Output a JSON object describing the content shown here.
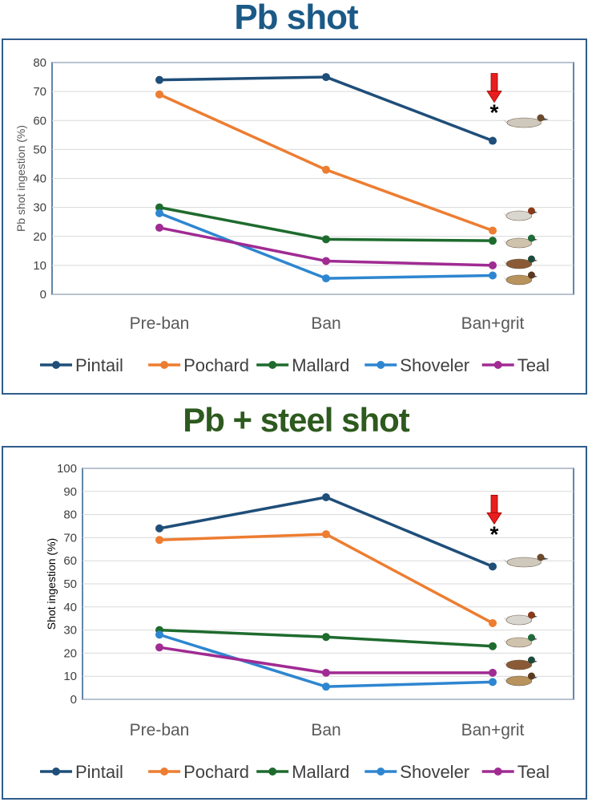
{
  "chart_data": [
    {
      "type": "line",
      "title": "Pb shot",
      "title_color": "#1b5a86",
      "ylabel": "Pb shot ingestion (%)",
      "ylim": [
        0,
        80
      ],
      "yticks": [
        0,
        10,
        20,
        30,
        40,
        50,
        60,
        70,
        80
      ],
      "categories": [
        "Pre-ban",
        "Ban",
        "Ban+grit"
      ],
      "annotation": "*",
      "series": [
        {
          "name": "Pintail",
          "color": "#1f4e79",
          "values": [
            74,
            75,
            53
          ]
        },
        {
          "name": "Pochard",
          "color": "#ed7d31",
          "values": [
            69,
            43,
            22
          ]
        },
        {
          "name": "Mallard",
          "color": "#1e6b2e",
          "values": [
            30,
            19,
            18.5
          ]
        },
        {
          "name": "Shoveler",
          "color": "#2e86d0",
          "values": [
            28,
            5.5,
            6.5
          ]
        },
        {
          "name": "Teal",
          "color": "#a02b93",
          "values": [
            23,
            11.5,
            10
          ]
        }
      ]
    },
    {
      "type": "line",
      "title": "Pb + steel shot",
      "title_color": "#2d5a1e",
      "ylabel": "Shot ingestion (%)",
      "ylim": [
        0,
        100
      ],
      "yticks": [
        0,
        10,
        20,
        30,
        40,
        50,
        60,
        70,
        80,
        90,
        100
      ],
      "categories": [
        "Pre-ban",
        "Ban",
        "Ban+grit"
      ],
      "annotation": "*",
      "series": [
        {
          "name": "Pintail",
          "color": "#1f4e79",
          "values": [
            74,
            87.5,
            57.5
          ]
        },
        {
          "name": "Pochard",
          "color": "#ed7d31",
          "values": [
            69,
            71.5,
            33
          ]
        },
        {
          "name": "Mallard",
          "color": "#1e6b2e",
          "values": [
            30,
            27,
            23
          ]
        },
        {
          "name": "Shoveler",
          "color": "#2e86d0",
          "values": [
            28,
            5.5,
            7.5
          ]
        },
        {
          "name": "Teal",
          "color": "#a02b93",
          "values": [
            22.5,
            11.5,
            11.5
          ]
        }
      ]
    }
  ]
}
